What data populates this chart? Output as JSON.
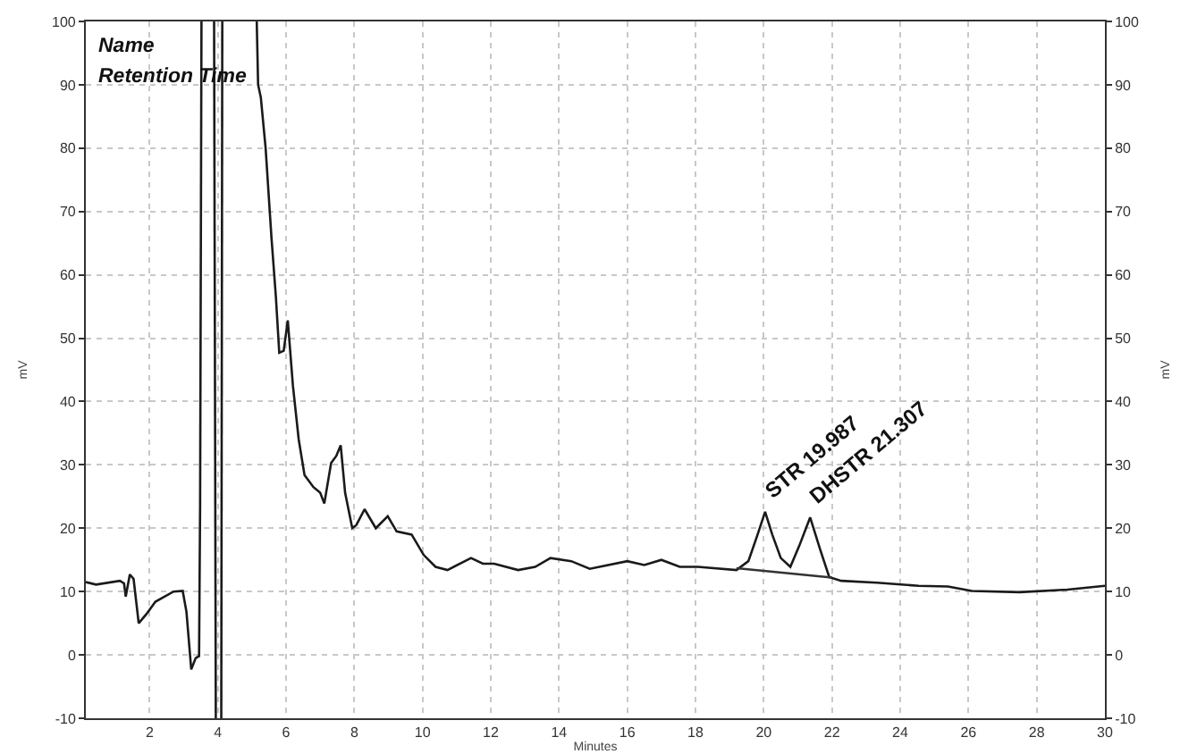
{
  "chart_data": {
    "type": "line",
    "xlabel": "Minutes",
    "ylabel": "mV",
    "y2label": "mV",
    "xlim": [
      0.13,
      30
    ],
    "xticks": [
      2,
      4,
      6,
      8,
      10,
      12,
      14,
      16,
      18,
      20,
      22,
      24,
      26,
      28,
      30
    ],
    "ylim": [
      -10,
      100
    ],
    "yticks": [
      -10,
      0,
      10,
      20,
      30,
      40,
      50,
      60,
      70,
      80,
      90,
      100
    ],
    "y2lim": [
      -10,
      100
    ],
    "y2ticks": [
      -10,
      0,
      10,
      20,
      30,
      40,
      50,
      60,
      70,
      80,
      90,
      100
    ],
    "grid": true,
    "marker": "none",
    "line_style": "solid",
    "annotations": [
      "Name",
      "Retention Time",
      {
        "text": "STR 19.987",
        "x": 20.04,
        "y": 22.6
      },
      {
        "text": "DHSTR 21.307",
        "x": 21.36,
        "y": 21.7
      }
    ],
    "series": [
      {
        "color": "#1a1a1a",
        "x": [
          0.13,
          0.43,
          1.13,
          1.25,
          1.3,
          1.42,
          1.53,
          1.68,
          1.9,
          2.17,
          2.7,
          2.97,
          3.08,
          3.22,
          3.35,
          3.45,
          3.48,
          3.52,
          3.7,
          3.89,
          3.94,
          4.02,
          4.1,
          4.13,
          4.6,
          5.14,
          5.18,
          5.26,
          5.4,
          5.57,
          5.7,
          5.8,
          5.93,
          6.05,
          6.2,
          6.37,
          6.54,
          6.8,
          7.0,
          7.12,
          7.32,
          7.47,
          7.6,
          7.73,
          7.94,
          8.06,
          8.3,
          8.63,
          8.98,
          9.24,
          9.68,
          10.03,
          10.38,
          10.73,
          11.42,
          11.77,
          12.1,
          12.8,
          13.3,
          13.75,
          14.36,
          14.9,
          16,
          16.5,
          17,
          17.54,
          18.07,
          19.2,
          19.55,
          19.82,
          20.04,
          20.25,
          20.5,
          20.78,
          21.04,
          21.36,
          21.65,
          21.92,
          22.27,
          23.32,
          24.54,
          25.4,
          26.1,
          27.5,
          28.9,
          30
        ],
        "values": [
          11.5,
          11.1,
          11.7,
          11.3,
          9.2,
          12.7,
          12,
          5,
          6.4,
          8.4,
          10,
          10.1,
          6.8,
          -2.3,
          -0.5,
          -0.2,
          23.7,
          100,
          null,
          100,
          -10,
          null,
          -10,
          100,
          null,
          100,
          90,
          88,
          80,
          66,
          56.6,
          47.7,
          48,
          52.8,
          42.5,
          34,
          28.4,
          26.5,
          25.6,
          23.9,
          30.3,
          31.4,
          33.1,
          25.6,
          20,
          20.5,
          23,
          20,
          21.9,
          19.5,
          19,
          15.8,
          13.9,
          13.4,
          15.3,
          14.4,
          14.4,
          13.4,
          13.9,
          15.3,
          14.8,
          13.6,
          14.8,
          14.2,
          15,
          13.9,
          13.9,
          13.4,
          14.8,
          19,
          22.6,
          19,
          15.3,
          13.9,
          17.2,
          21.7,
          16.7,
          12.3,
          11.7,
          11.4,
          10.9,
          10.8,
          10.1,
          9.9,
          10.3,
          10.9
        ]
      },
      {
        "type": "line",
        "color": "#333333",
        "x": [
          19.2,
          22
        ],
        "values": [
          13.7,
          12.2
        ]
      }
    ]
  }
}
